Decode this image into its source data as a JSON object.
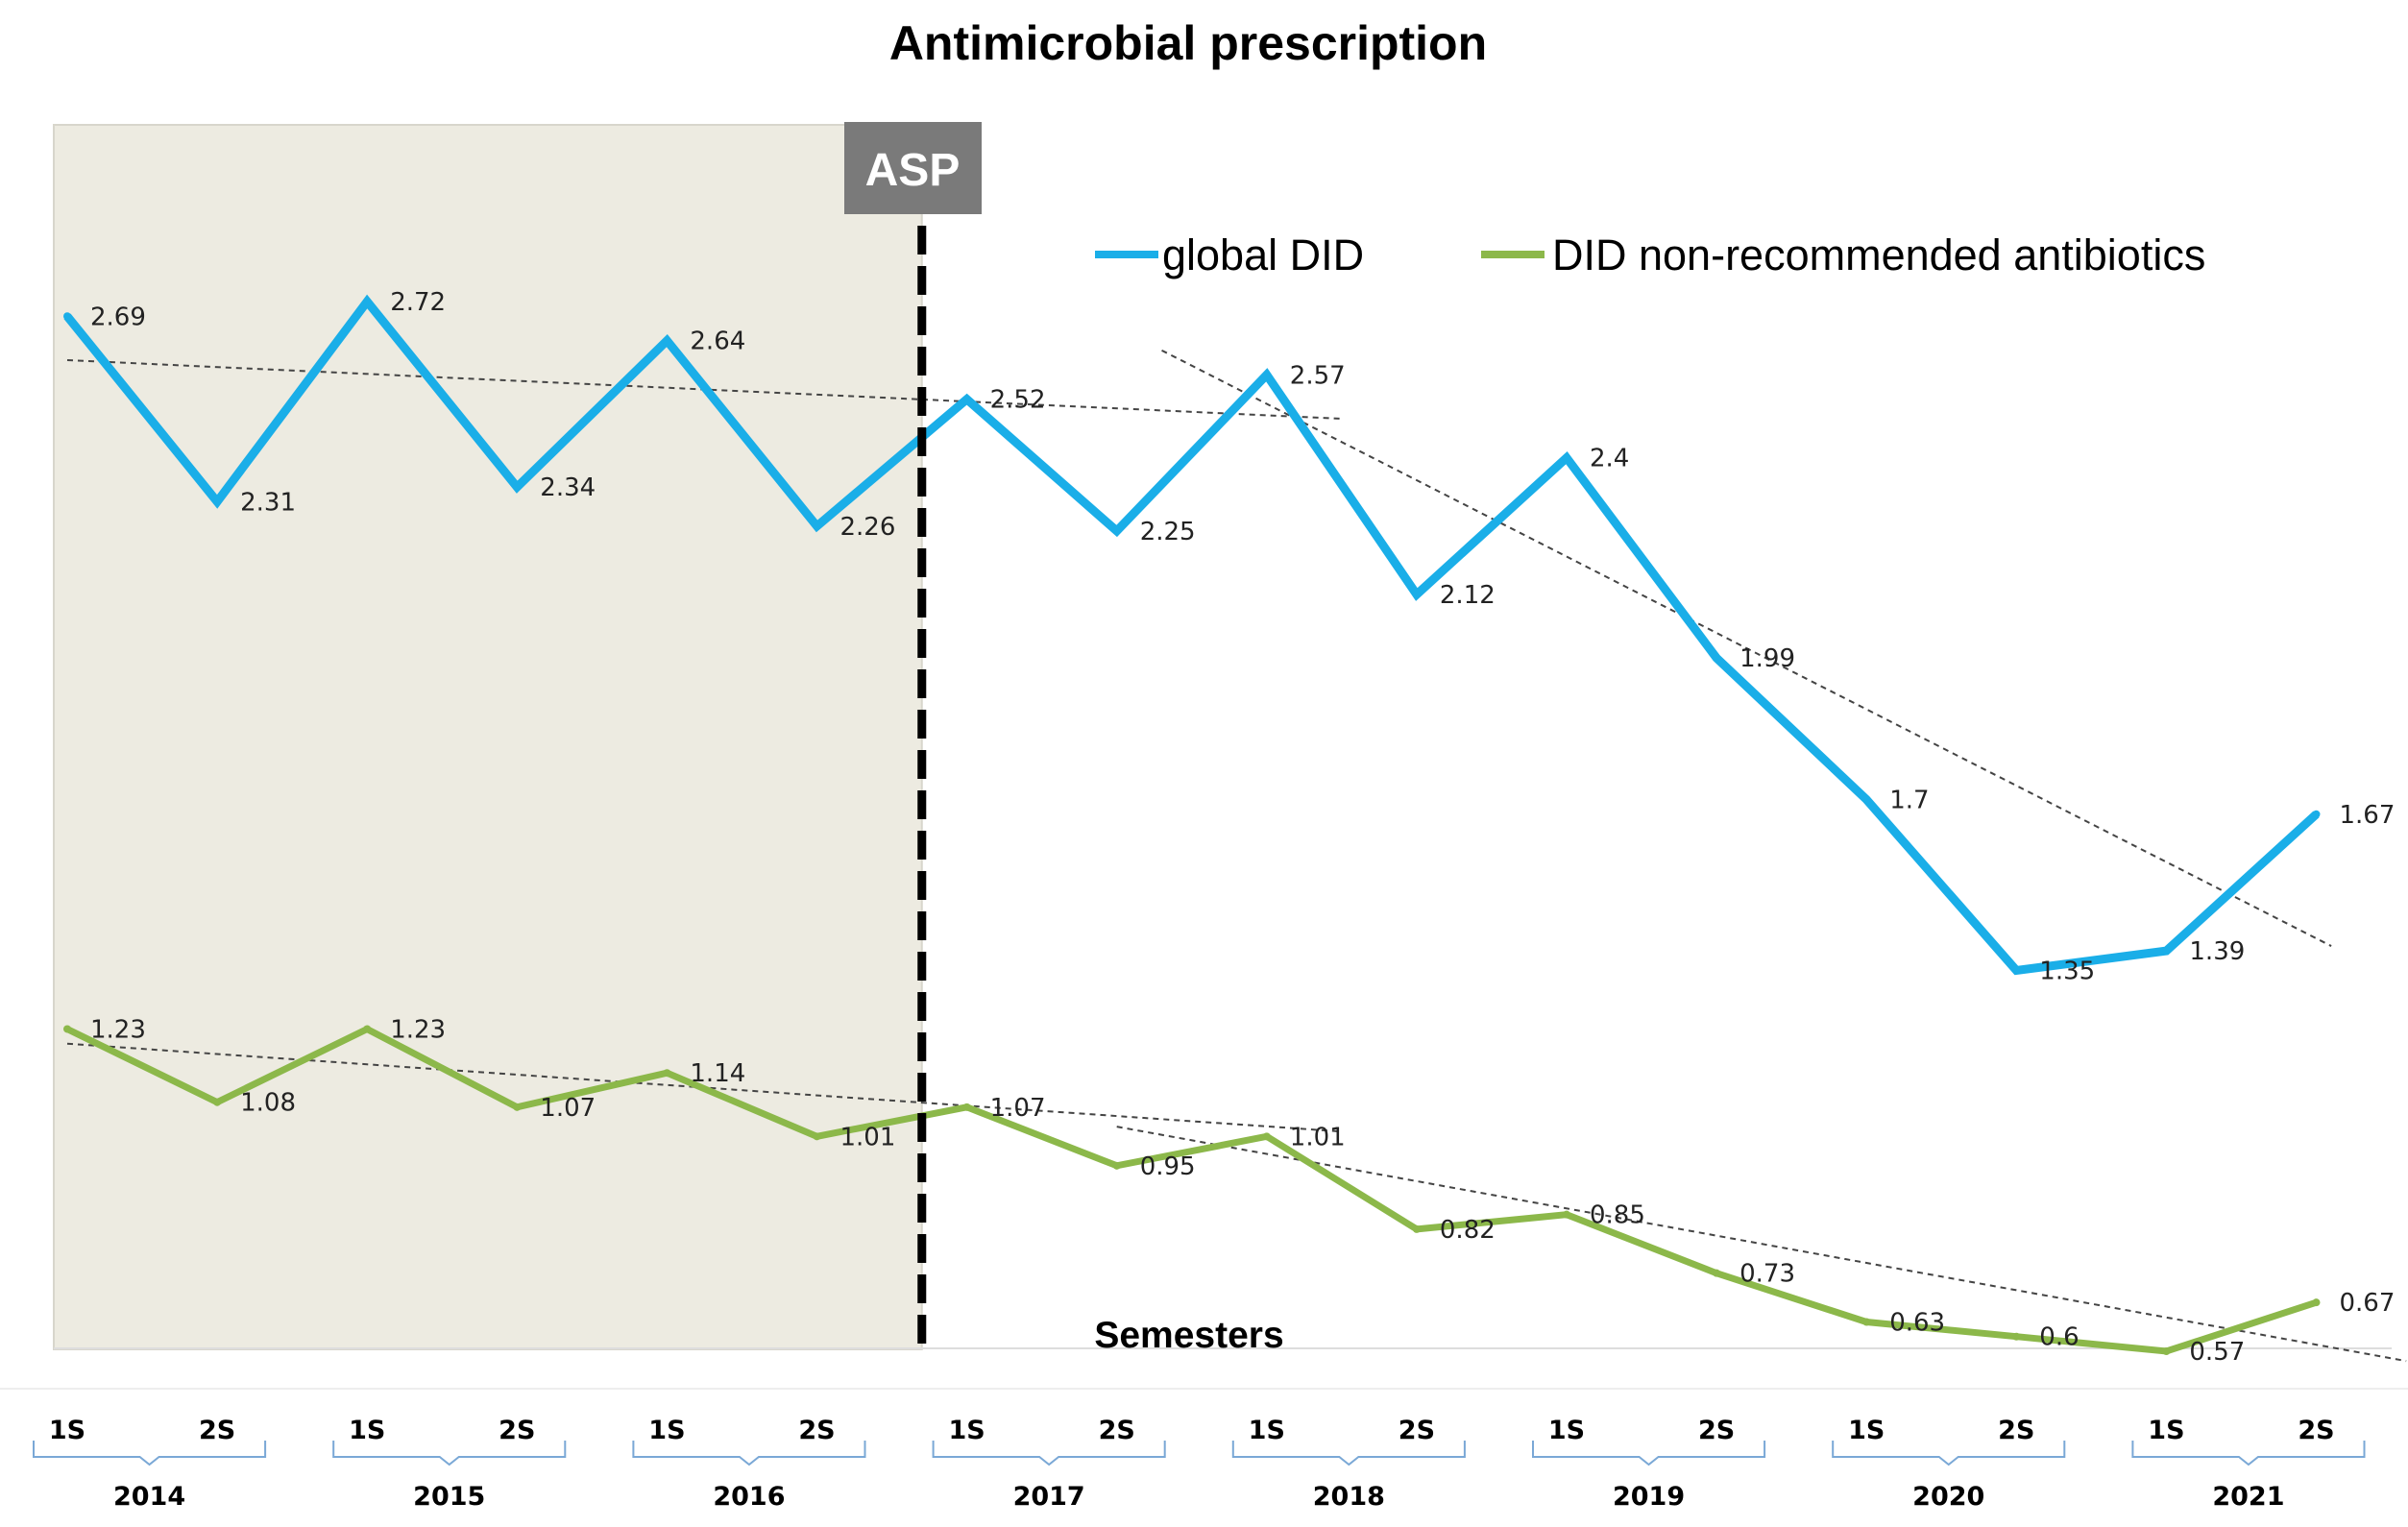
{
  "chart_data": {
    "type": "line",
    "title": "Antimicrobial prescription",
    "xlabel": "Semesters",
    "ylabel": "",
    "years": [
      "2014",
      "2015",
      "2016",
      "2017",
      "2018",
      "2019",
      "2020",
      "2021"
    ],
    "semesters": [
      "1S",
      "2S"
    ],
    "categories": [
      "2014 1S",
      "2014 2S",
      "2015 1S",
      "2015 2S",
      "2016 1S",
      "2016 2S",
      "2017 1S",
      "2017 2S",
      "2018 1S",
      "2018 2S",
      "2019 1S",
      "2019 2S",
      "2020 1S",
      "2020 2S",
      "2021 1S",
      "2021 2S"
    ],
    "series": [
      {
        "name": "global DID",
        "color": "#1aaee8",
        "values": [
          2.69,
          2.31,
          2.72,
          2.34,
          2.64,
          2.26,
          2.52,
          2.25,
          2.57,
          2.12,
          2.4,
          1.99,
          1.7,
          1.35,
          1.39,
          1.67
        ],
        "labels": [
          "2.69",
          "2.31",
          "2.72",
          "2.34",
          "2.64",
          "2.26",
          "2.52",
          "2.25",
          "2.57",
          "2.12",
          "2.4",
          "1.99",
          "1.7",
          "1.35",
          "1.39",
          "1.67"
        ]
      },
      {
        "name": "DID non-recommended antibiotics",
        "color": "#8cb84a",
        "values": [
          1.23,
          1.08,
          1.23,
          1.07,
          1.14,
          1.01,
          1.07,
          0.95,
          1.01,
          0.82,
          0.85,
          0.73,
          0.63,
          0.6,
          0.57,
          0.67
        ],
        "labels": [
          "1.23",
          "1.08",
          "1.23",
          "1.07",
          "1.14",
          "1.01",
          "1.07",
          "0.95",
          "1.01",
          "0.82",
          "0.85",
          "0.73",
          "0.63",
          "0.6",
          "0.57",
          "0.67"
        ]
      }
    ],
    "trendlines": [
      {
        "series": "global DID",
        "from_index": 0,
        "to_index": 8.5,
        "y_start": 2.6,
        "y_end": 2.48
      },
      {
        "series": "global DID",
        "from_index": 7.3,
        "to_index": 15.1,
        "y_start": 2.62,
        "y_end": 1.4
      },
      {
        "series": "DID non-recommended antibiotics",
        "from_index": 0,
        "to_index": 8.5,
        "y_start": 1.2,
        "y_end": 1.02
      },
      {
        "series": "DID non-recommended antibiotics",
        "from_index": 7,
        "to_index": 15.6,
        "y_start": 1.03,
        "y_end": 0.55
      }
    ],
    "shaded_region": {
      "from_index": 0,
      "to_index": 5.7,
      "label": "ASP",
      "color": "#edebe1"
    },
    "intervention": {
      "label": "ASP",
      "at_index": 5.7
    },
    "ylim": [
      0.5,
      2.9
    ],
    "grid": false,
    "legend_position": "top-right"
  }
}
